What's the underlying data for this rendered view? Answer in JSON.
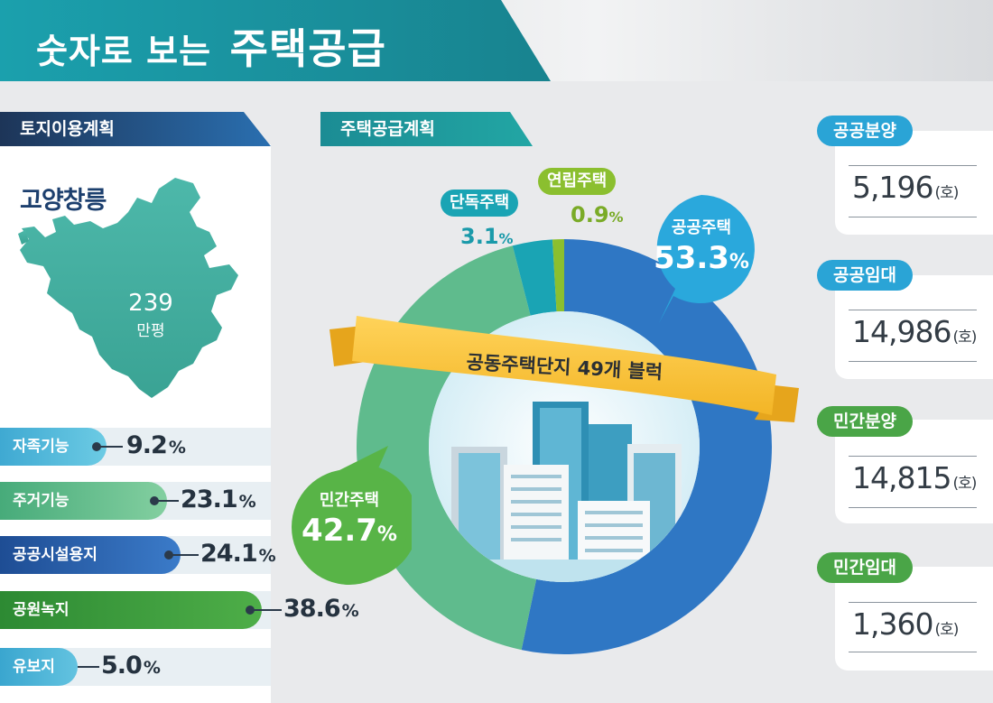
{
  "title": {
    "part1": "숫자로 보는",
    "part2": "주택공급"
  },
  "land_use": {
    "header": "토지이용계획",
    "region": "고양창릉",
    "area_value": "239",
    "area_unit": "만평",
    "items": [
      {
        "label": "자족기능",
        "value": "9.2",
        "unit": "%",
        "color": "#5ab9d8"
      },
      {
        "label": "주거기능",
        "value": "23.1",
        "unit": "%",
        "color": "#6cc08e"
      },
      {
        "label": "공공시설용지",
        "value": "24.1",
        "unit": "%",
        "color": "#2b64b0"
      },
      {
        "label": "공원녹지",
        "value": "38.6",
        "unit": "%",
        "color": "#3a9a3e"
      },
      {
        "label": "유보지",
        "value": "5.0",
        "unit": "%",
        "color": "#4fb3d4"
      }
    ]
  },
  "housing_plan": {
    "header": "주택공급계획",
    "banner": "공동주택단지 49개 블럭"
  },
  "chart_data": {
    "type": "pie",
    "donut": true,
    "slices": [
      {
        "label": "공공주택",
        "value": 53.3,
        "display": "53.3",
        "unit": "%",
        "color": "#2f77c4"
      },
      {
        "label": "민간주택",
        "value": 42.7,
        "display": "42.7",
        "unit": "%",
        "color": "#5fbb8d"
      },
      {
        "label": "단독주택",
        "value": 3.1,
        "display": "3.1",
        "unit": "%",
        "color": "#1aa4b4"
      },
      {
        "label": "연립주택",
        "value": 0.9,
        "display": "0.9",
        "unit": "%",
        "color": "#8bbf2f"
      }
    ]
  },
  "supply_cards": [
    {
      "label": "공공분양",
      "value": "5,196",
      "unit": "(호)",
      "color": "#2aa4d6"
    },
    {
      "label": "공공임대",
      "value": "14,986",
      "unit": "(호)",
      "color": "#2aa4d6"
    },
    {
      "label": "민간분양",
      "value": "14,815",
      "unit": "(호)",
      "color": "#4aa547"
    },
    {
      "label": "민간임대",
      "value": "1,360",
      "unit": "(호)",
      "color": "#4aa547"
    }
  ]
}
